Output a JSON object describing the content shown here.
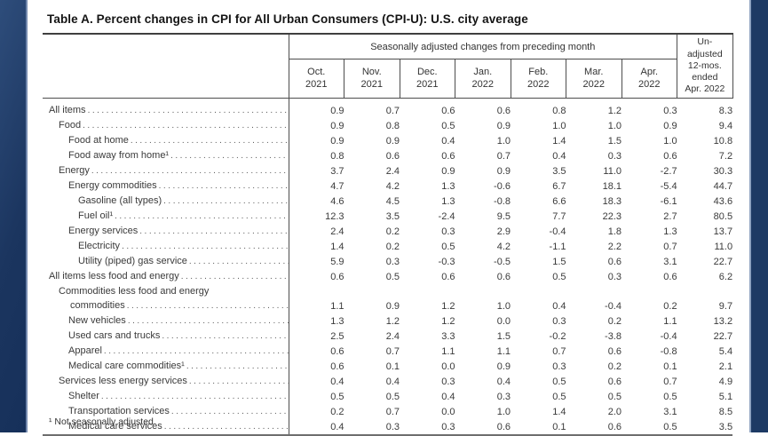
{
  "page": {
    "title": "Table A. Percent changes in CPI for All Urban Consumers (CPI-U): U.S. city average",
    "footnote": "¹ Not seasonally adjusted."
  },
  "colors": {
    "band_navy": "#1d3a64",
    "band_edge": "#8fa3c0",
    "table_border": "#4d4d4d",
    "text": "#333333"
  },
  "table": {
    "group_header": "Seasonally adjusted changes from preceding month",
    "unadjusted_header": "Un-\nadjusted\n12-mos.\nended\nApr. 2022",
    "columns": [
      {
        "line1": "Oct.",
        "line2": "2021"
      },
      {
        "line1": "Nov.",
        "line2": "2021"
      },
      {
        "line1": "Dec.",
        "line2": "2021"
      },
      {
        "line1": "Jan.",
        "line2": "2022"
      },
      {
        "line1": "Feb.",
        "line2": "2022"
      },
      {
        "line1": "Mar.",
        "line2": "2022"
      },
      {
        "line1": "Apr.",
        "line2": "2022"
      }
    ],
    "rows": [
      {
        "label": "All items",
        "indent": 0,
        "values": [
          "0.9",
          "0.7",
          "0.6",
          "0.6",
          "0.8",
          "1.2",
          "0.3"
        ],
        "unadjusted": "8.3"
      },
      {
        "label": "Food",
        "indent": 1,
        "values": [
          "0.9",
          "0.8",
          "0.5",
          "0.9",
          "1.0",
          "1.0",
          "0.9"
        ],
        "unadjusted": "9.4"
      },
      {
        "label": "Food at home",
        "indent": 2,
        "values": [
          "0.9",
          "0.9",
          "0.4",
          "1.0",
          "1.4",
          "1.5",
          "1.0"
        ],
        "unadjusted": "10.8"
      },
      {
        "label": "Food away from home¹",
        "indent": 2,
        "values": [
          "0.8",
          "0.6",
          "0.6",
          "0.7",
          "0.4",
          "0.3",
          "0.6"
        ],
        "unadjusted": "7.2"
      },
      {
        "label": "Energy",
        "indent": 1,
        "values": [
          "3.7",
          "2.4",
          "0.9",
          "0.9",
          "3.5",
          "11.0",
          "-2.7"
        ],
        "unadjusted": "30.3"
      },
      {
        "label": "Energy commodities",
        "indent": 2,
        "values": [
          "4.7",
          "4.2",
          "1.3",
          "-0.6",
          "6.7",
          "18.1",
          "-5.4"
        ],
        "unadjusted": "44.7"
      },
      {
        "label": "Gasoline (all types)",
        "indent": 3,
        "values": [
          "4.6",
          "4.5",
          "1.3",
          "-0.8",
          "6.6",
          "18.3",
          "-6.1"
        ],
        "unadjusted": "43.6"
      },
      {
        "label": "Fuel oil¹",
        "indent": 3,
        "values": [
          "12.3",
          "3.5",
          "-2.4",
          "9.5",
          "7.7",
          "22.3",
          "2.7"
        ],
        "unadjusted": "80.5"
      },
      {
        "label": "Energy services",
        "indent": 2,
        "values": [
          "2.4",
          "0.2",
          "0.3",
          "2.9",
          "-0.4",
          "1.8",
          "1.3"
        ],
        "unadjusted": "13.7"
      },
      {
        "label": "Electricity",
        "indent": 3,
        "values": [
          "1.4",
          "0.2",
          "0.5",
          "4.2",
          "-1.1",
          "2.2",
          "0.7"
        ],
        "unadjusted": "11.0"
      },
      {
        "label": "Utility (piped) gas service",
        "indent": 3,
        "values": [
          "5.9",
          "0.3",
          "-0.3",
          "-0.5",
          "1.5",
          "0.6",
          "3.1"
        ],
        "unadjusted": "22.7"
      },
      {
        "label": "All items less food and energy",
        "indent": 0,
        "values": [
          "0.6",
          "0.5",
          "0.6",
          "0.6",
          "0.5",
          "0.3",
          "0.6"
        ],
        "unadjusted": "6.2"
      },
      {
        "label": "Commodities less food and energy",
        "label2": "commodities",
        "indent": 1,
        "values": [
          "1.1",
          "0.9",
          "1.2",
          "1.0",
          "0.4",
          "-0.4",
          "0.2"
        ],
        "unadjusted": "9.7"
      },
      {
        "label": "New vehicles",
        "indent": 2,
        "values": [
          "1.3",
          "1.2",
          "1.2",
          "0.0",
          "0.3",
          "0.2",
          "1.1"
        ],
        "unadjusted": "13.2"
      },
      {
        "label": "Used cars and trucks",
        "indent": 2,
        "values": [
          "2.5",
          "2.4",
          "3.3",
          "1.5",
          "-0.2",
          "-3.8",
          "-0.4"
        ],
        "unadjusted": "22.7"
      },
      {
        "label": "Apparel",
        "indent": 2,
        "values": [
          "0.6",
          "0.7",
          "1.1",
          "1.1",
          "0.7",
          "0.6",
          "-0.8"
        ],
        "unadjusted": "5.4"
      },
      {
        "label": "Medical care commodities¹",
        "indent": 2,
        "values": [
          "0.6",
          "0.1",
          "0.0",
          "0.9",
          "0.3",
          "0.2",
          "0.1"
        ],
        "unadjusted": "2.1"
      },
      {
        "label": "Services less energy services",
        "indent": 1,
        "values": [
          "0.4",
          "0.4",
          "0.3",
          "0.4",
          "0.5",
          "0.6",
          "0.7"
        ],
        "unadjusted": "4.9"
      },
      {
        "label": "Shelter",
        "indent": 2,
        "values": [
          "0.5",
          "0.5",
          "0.4",
          "0.3",
          "0.5",
          "0.5",
          "0.5"
        ],
        "unadjusted": "5.1"
      },
      {
        "label": "Transportation services",
        "indent": 2,
        "values": [
          "0.2",
          "0.7",
          "0.0",
          "1.0",
          "1.4",
          "2.0",
          "3.1"
        ],
        "unadjusted": "8.5"
      },
      {
        "label": "Medical care services",
        "indent": 2,
        "values": [
          "0.4",
          "0.3",
          "0.3",
          "0.6",
          "0.1",
          "0.6",
          "0.5"
        ],
        "unadjusted": "3.5"
      }
    ]
  }
}
